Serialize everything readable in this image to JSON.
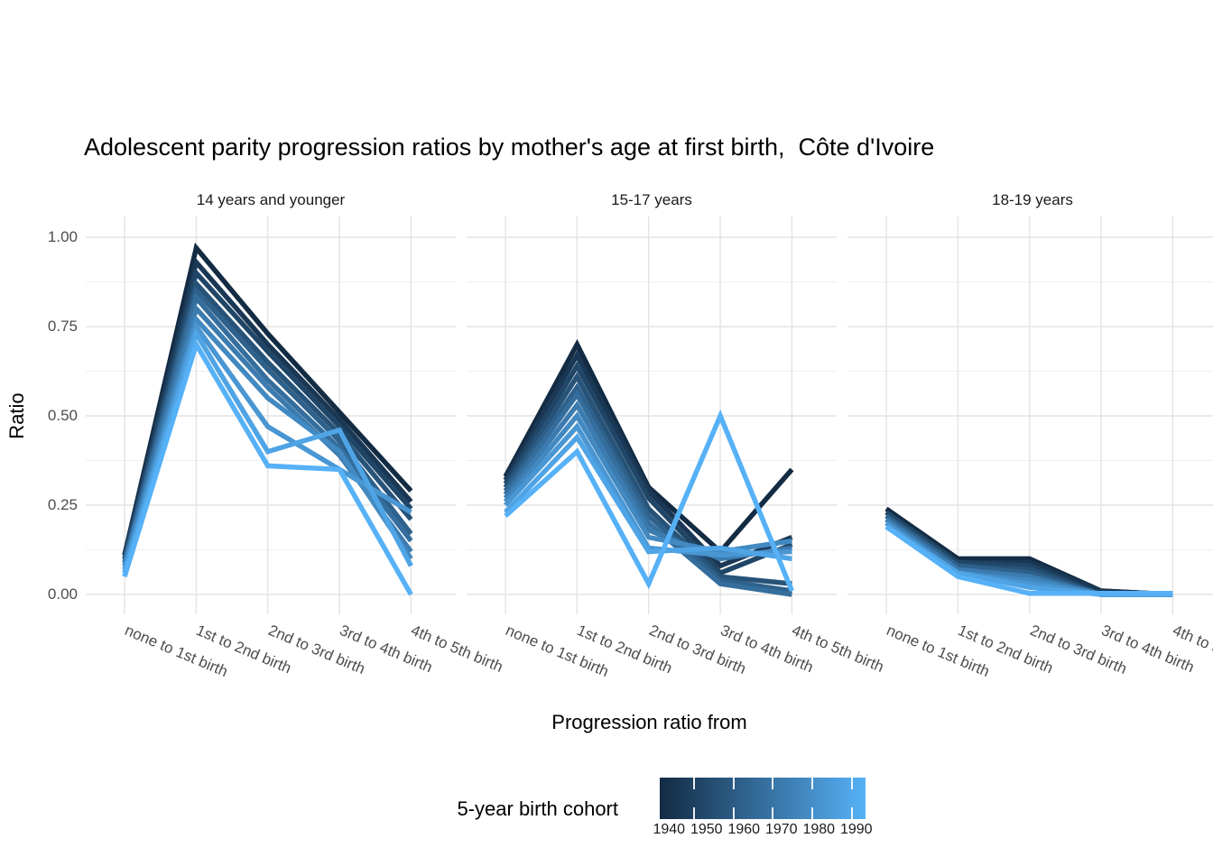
{
  "chart_data": {
    "type": "line",
    "title": "Adolescent parity progression ratios by mother's age at first birth,  Côte d'Ivoire",
    "xlabel": "Progression ratio from",
    "ylabel": "Ratio",
    "ylim": [
      0,
      1
    ],
    "grid": true,
    "y_ticks": [
      {
        "label": "1.00",
        "value": 1.0
      },
      {
        "label": "0.75",
        "value": 0.75
      },
      {
        "label": "0.50",
        "value": 0.5
      },
      {
        "label": "0.25",
        "value": 0.25
      },
      {
        "label": "0.00",
        "value": 0.0
      }
    ],
    "categories": [
      "none to 1st birth",
      "1st to 2nd birth",
      "2nd to 3rd birth",
      "3rd to 4th birth",
      "4th to 5th birth"
    ],
    "legend": {
      "title": "5-year birth cohort",
      "position": "bottom",
      "min": 1940,
      "max": 1990,
      "tick_labels": [
        "1940",
        "1950",
        "1960",
        "1970",
        "1980",
        "1990"
      ],
      "low_color": "#132B43",
      "mid_color": "#356E9D",
      "high_color": "#56B1F7"
    },
    "facets": [
      {
        "label": "14 years and younger",
        "series": [
          {
            "name": "1940",
            "color": "#132B43",
            "values": [
              0.11,
              0.97,
              0.73,
              0.51,
              0.29
            ]
          },
          {
            "name": "1945",
            "color": "#1A3855",
            "values": [
              0.11,
              0.93,
              0.7,
              0.49,
              0.26
            ]
          },
          {
            "name": "1950",
            "color": "#204667",
            "values": [
              0.1,
              0.9,
              0.68,
              0.47,
              0.24
            ]
          },
          {
            "name": "1955",
            "color": "#275379",
            "values": [
              0.1,
              0.87,
              0.65,
              0.45,
              0.21
            ]
          },
          {
            "name": "1960",
            "color": "#2E618B",
            "values": [
              0.09,
              0.85,
              0.63,
              0.43,
              0.17
            ]
          },
          {
            "name": "1965",
            "color": "#356E9D",
            "values": [
              0.09,
              0.83,
              0.6,
              0.41,
              0.15
            ]
          },
          {
            "name": "1970",
            "color": "#3B7BAF",
            "values": [
              0.08,
              0.8,
              0.58,
              0.39,
              0.12
            ]
          },
          {
            "name": "1975",
            "color": "#4289C1",
            "values": [
              0.08,
              0.77,
              0.55,
              0.4,
              0.1
            ]
          },
          {
            "name": "1980",
            "color": "#4996D3",
            "values": [
              0.07,
              0.75,
              0.47,
              0.35,
              0.23
            ]
          },
          {
            "name": "1985",
            "color": "#4FA4E5",
            "values": [
              0.06,
              0.73,
              0.4,
              0.46,
              0.08
            ]
          },
          {
            "name": "1990",
            "color": "#56B1F7",
            "values": [
              0.05,
              0.7,
              0.36,
              0.35,
              0.0
            ]
          }
        ]
      },
      {
        "label": "15-17 years",
        "series": [
          {
            "name": "1940",
            "color": "#132B43",
            "values": [
              0.33,
              0.7,
              0.3,
              0.12,
              0.35
            ]
          },
          {
            "name": "1945",
            "color": "#1A3855",
            "values": [
              0.32,
              0.67,
              0.29,
              0.08,
              0.16
            ]
          },
          {
            "name": "1950",
            "color": "#204667",
            "values": [
              0.31,
              0.64,
              0.27,
              0.06,
              0.14
            ]
          },
          {
            "name": "1955",
            "color": "#275379",
            "values": [
              0.3,
              0.61,
              0.24,
              0.05,
              0.03
            ]
          },
          {
            "name": "1960",
            "color": "#2E618B",
            "values": [
              0.29,
              0.58,
              0.22,
              0.04,
              0.01
            ]
          },
          {
            "name": "1965",
            "color": "#356E9D",
            "values": [
              0.28,
              0.56,
              0.2,
              0.03,
              0.0
            ]
          },
          {
            "name": "1970",
            "color": "#3B7BAF",
            "values": [
              0.27,
              0.53,
              0.18,
              0.1,
              0.13
            ]
          },
          {
            "name": "1975",
            "color": "#4289C1",
            "values": [
              0.26,
              0.5,
              0.16,
              0.12,
              0.15
            ]
          },
          {
            "name": "1980",
            "color": "#4996D3",
            "values": [
              0.25,
              0.47,
              0.13,
              0.11,
              0.12
            ]
          },
          {
            "name": "1985",
            "color": "#4FA4E5",
            "values": [
              0.23,
              0.44,
              0.12,
              0.13,
              0.1
            ]
          },
          {
            "name": "1990",
            "color": "#56B1F7",
            "values": [
              0.22,
              0.4,
              0.03,
              0.5,
              0.01
            ]
          }
        ]
      },
      {
        "label": "18-19 years",
        "series": [
          {
            "name": "1940",
            "color": "#132B43",
            "values": [
              0.24,
              0.1,
              0.1,
              0.01,
              0.0
            ]
          },
          {
            "name": "1945",
            "color": "#1A3855",
            "values": [
              0.23,
              0.09,
              0.09,
              0.01,
              0.0
            ]
          },
          {
            "name": "1950",
            "color": "#204667",
            "values": [
              0.23,
              0.09,
              0.08,
              0.0,
              0.0
            ]
          },
          {
            "name": "1955",
            "color": "#275379",
            "values": [
              0.22,
              0.08,
              0.07,
              0.0,
              0.0
            ]
          },
          {
            "name": "1960",
            "color": "#2E618B",
            "values": [
              0.22,
              0.08,
              0.06,
              0.0,
              0.0
            ]
          },
          {
            "name": "1965",
            "color": "#356E9D",
            "values": [
              0.21,
              0.07,
              0.05,
              0.0,
              0.0
            ]
          },
          {
            "name": "1970",
            "color": "#3B7BAF",
            "values": [
              0.21,
              0.07,
              0.05,
              0.0,
              0.0
            ]
          },
          {
            "name": "1975",
            "color": "#4289C1",
            "values": [
              0.2,
              0.06,
              0.04,
              0.0,
              0.0
            ]
          },
          {
            "name": "1980",
            "color": "#4996D3",
            "values": [
              0.2,
              0.06,
              0.03,
              0.0,
              0.0
            ]
          },
          {
            "name": "1985",
            "color": "#4FA4E5",
            "values": [
              0.19,
              0.06,
              0.02,
              0.0,
              0.0
            ]
          },
          {
            "name": "1990",
            "color": "#56B1F7",
            "values": [
              0.19,
              0.05,
              0.003,
              0.003,
              0.003
            ]
          }
        ]
      }
    ]
  }
}
